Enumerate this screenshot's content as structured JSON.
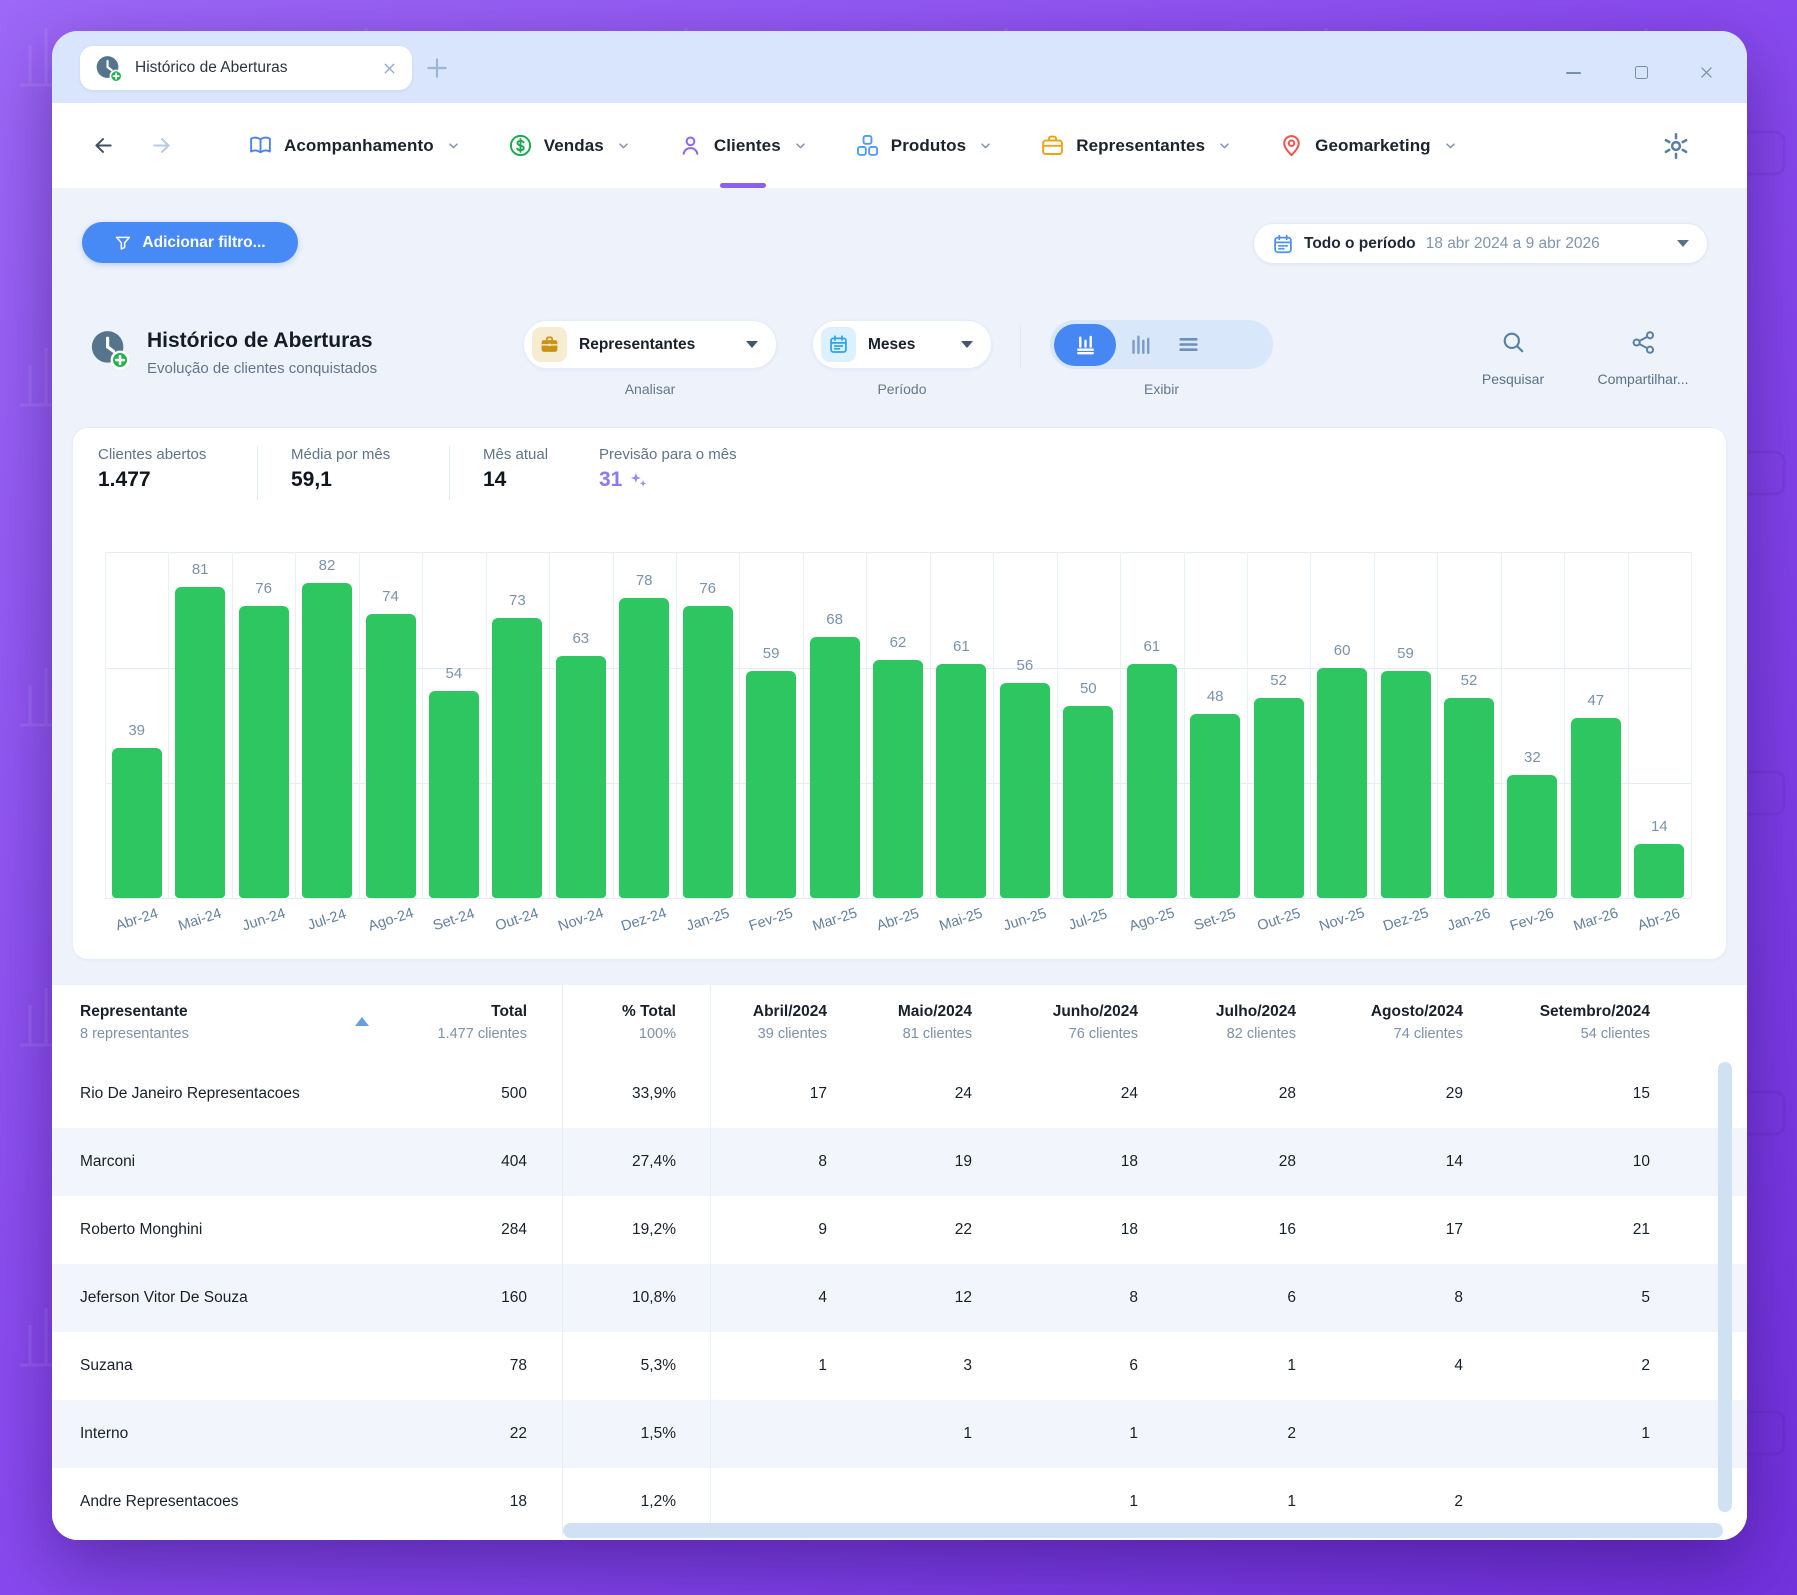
{
  "window": {
    "tab_title": "Histórico de Aberturas",
    "tab_icon": "clock-plus-icon",
    "controls": [
      "minimize",
      "maximize",
      "close"
    ]
  },
  "nav": {
    "items": [
      {
        "id": "acompanhamento",
        "label": "Acompanhamento",
        "icon": "book-icon",
        "active": false
      },
      {
        "id": "vendas",
        "label": "Vendas",
        "icon": "dollar-icon",
        "active": false
      },
      {
        "id": "clientes",
        "label": "Clientes",
        "icon": "person-icon",
        "active": true
      },
      {
        "id": "produtos",
        "label": "Produtos",
        "icon": "boxes-icon",
        "active": false
      },
      {
        "id": "representantes",
        "label": "Representantes",
        "icon": "briefcase-icon",
        "active": false
      },
      {
        "id": "geomarketing",
        "label": "Geomarketing",
        "icon": "pin-icon",
        "active": false
      }
    ],
    "settings_icon": "gear-icon"
  },
  "filter_bar": {
    "add_filter_label": "Adicionar filtro...",
    "period_label": "Todo o período",
    "period_range": "18 abr 2024 a 9 abr 2026"
  },
  "panel": {
    "title": "Histórico de Aberturas",
    "subtitle": "Evolução de clientes conquistados",
    "analisar": {
      "value": "Representantes",
      "caption": "Analisar",
      "icon": "briefcase-chip-icon"
    },
    "periodo": {
      "value": "Meses",
      "caption": "Período",
      "icon": "calendar-chip-icon"
    },
    "exibir_caption": "Exibir",
    "view_modes": [
      "chart-stacked-icon",
      "chart-bars-icon",
      "list-icon"
    ],
    "search_label": "Pesquisar",
    "share_label": "Compartilhar..."
  },
  "stats": [
    {
      "label": "Clientes abertos",
      "value": "1.477"
    },
    {
      "label": "Média por mês",
      "value": "59,1"
    },
    {
      "label": "Mês atual",
      "value": "14"
    },
    {
      "label": "Previsão para o mês",
      "value": "31",
      "accent": true,
      "icon": "sparkle-icon"
    }
  ],
  "chart_data": {
    "type": "bar",
    "categories": [
      "Abr-24",
      "Mai-24",
      "Jun-24",
      "Jul-24",
      "Ago-24",
      "Set-24",
      "Out-24",
      "Nov-24",
      "Dez-24",
      "Jan-25",
      "Fev-25",
      "Mar-25",
      "Abr-25",
      "Mai-25",
      "Jun-25",
      "Jul-25",
      "Ago-25",
      "Set-25",
      "Out-25",
      "Nov-25",
      "Dez-25",
      "Jan-26",
      "Fev-26",
      "Mar-26",
      "Abr-26"
    ],
    "values": [
      39,
      81,
      76,
      82,
      74,
      54,
      73,
      63,
      78,
      76,
      59,
      68,
      62,
      61,
      56,
      50,
      61,
      48,
      52,
      60,
      59,
      52,
      32,
      47,
      14
    ],
    "title": "Histórico de Aberturas",
    "xlabel": "",
    "ylabel": "",
    "ylim": [
      0,
      90
    ],
    "grid": true,
    "bar_color": "#2ec661",
    "label_color": "#7b92aa",
    "legend_position": "none"
  },
  "table": {
    "header": [
      {
        "title": "Representante",
        "subtitle": "8 representantes",
        "sortable": true
      },
      {
        "title": "Total",
        "subtitle": "1.477 clientes"
      },
      {
        "title": "% Total",
        "subtitle": "100%"
      },
      {
        "title": "Abril/2024",
        "subtitle": "39 clientes"
      },
      {
        "title": "Maio/2024",
        "subtitle": "81 clientes"
      },
      {
        "title": "Junho/2024",
        "subtitle": "76 clientes"
      },
      {
        "title": "Julho/2024",
        "subtitle": "82 clientes"
      },
      {
        "title": "Agosto/2024",
        "subtitle": "74 clientes"
      },
      {
        "title": "Setembro/2024",
        "subtitle": "54 clientes"
      }
    ],
    "rows": [
      [
        "Rio De Janeiro Representacoes",
        "500",
        "33,9%",
        "17",
        "24",
        "24",
        "28",
        "29",
        "15"
      ],
      [
        "Marconi",
        "404",
        "27,4%",
        "8",
        "19",
        "18",
        "28",
        "14",
        "10"
      ],
      [
        "Roberto Monghini",
        "284",
        "19,2%",
        "9",
        "22",
        "18",
        "16",
        "17",
        "21"
      ],
      [
        "Jeferson Vitor De Souza",
        "160",
        "10,8%",
        "4",
        "12",
        "8",
        "6",
        "8",
        "5"
      ],
      [
        "Suzana",
        "78",
        "5,3%",
        "1",
        "3",
        "6",
        "1",
        "4",
        "2"
      ],
      [
        "Interno",
        "22",
        "1,5%",
        "",
        "1",
        "1",
        "2",
        "",
        "1"
      ],
      [
        "Andre Representacoes",
        "18",
        "1,2%",
        "",
        "",
        "1",
        "1",
        "2",
        ""
      ]
    ]
  },
  "colors": {
    "accent_blue": "#4789f5",
    "accent_purple": "#8a5ff2",
    "bar_green": "#2ec661",
    "stat_purple": "#8b7af2",
    "tabbar_bg": "#d8e5fc",
    "panel_bg": "#edf2fb"
  }
}
